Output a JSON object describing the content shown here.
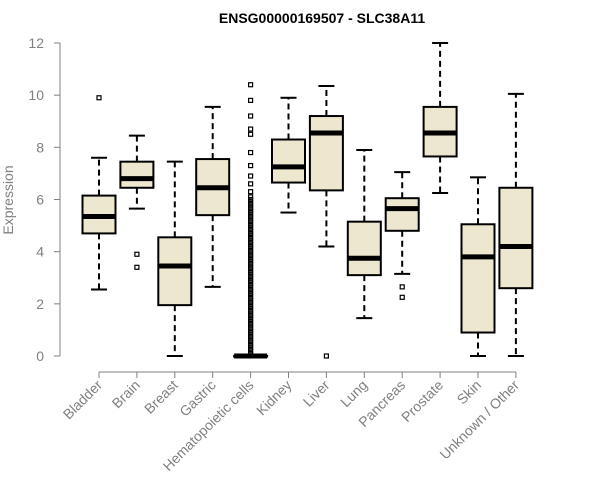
{
  "chart_data": {
    "type": "boxplot",
    "title": "ENSG00000169507 - SLC38A11",
    "xlabel": "",
    "ylabel": "Expression",
    "ylim": [
      0,
      12
    ],
    "yticks": [
      "0",
      "2",
      "4",
      "6",
      "8",
      "10",
      "12"
    ],
    "colors": {
      "box_fill": "#ede7cf",
      "stroke": "#000000",
      "axis": "#808080"
    },
    "categories": [
      "Bladder",
      "Brain",
      "Breast",
      "Gastric",
      "Hematopoietic cells",
      "Kidney",
      "Liver",
      "Lung",
      "Pancreas",
      "Prostate",
      "Skin",
      "Unknown / Other"
    ],
    "boxes": [
      {
        "name": "Bladder",
        "min": 2.55,
        "q1": 4.7,
        "median": 5.35,
        "q3": 6.15,
        "max": 7.6,
        "outliers": [
          9.9
        ]
      },
      {
        "name": "Brain",
        "min": 5.65,
        "q1": 6.45,
        "median": 6.8,
        "q3": 7.45,
        "max": 8.45,
        "outliers": [
          3.9,
          3.4
        ]
      },
      {
        "name": "Breast",
        "min": 0.0,
        "q1": 1.95,
        "median": 3.45,
        "q3": 4.55,
        "max": 7.45,
        "outliers": []
      },
      {
        "name": "Gastric",
        "min": 2.65,
        "q1": 5.4,
        "median": 6.45,
        "q3": 7.55,
        "max": 9.55,
        "outliers": []
      },
      {
        "name": "Hematopoietic cells",
        "min": 0.0,
        "q1": 0.0,
        "median": 0.0,
        "q3": 0.0,
        "max": 0.0,
        "outliers": [
          0.1,
          0.2,
          0.3,
          0.4,
          0.5,
          0.6,
          0.7,
          0.8,
          0.9,
          1.0,
          1.1,
          1.2,
          1.3,
          1.4,
          1.5,
          1.6,
          1.7,
          1.8,
          1.9,
          2.0,
          2.1,
          2.2,
          2.3,
          2.4,
          2.5,
          2.6,
          2.7,
          2.8,
          2.9,
          3.0,
          3.1,
          3.2,
          3.3,
          3.4,
          3.5,
          3.6,
          3.7,
          3.8,
          3.9,
          4.0,
          4.1,
          4.2,
          4.3,
          4.4,
          4.5,
          4.6,
          4.7,
          4.8,
          4.9,
          5.0,
          5.1,
          5.2,
          5.3,
          5.4,
          5.5,
          5.6,
          5.7,
          5.8,
          5.9,
          6.0,
          6.1,
          6.3,
          6.6,
          6.9,
          7.3,
          7.8,
          8.5,
          8.7,
          9.2,
          9.8,
          10.4
        ]
      },
      {
        "name": "Kidney",
        "min": 5.5,
        "q1": 6.65,
        "median": 7.25,
        "q3": 8.3,
        "max": 9.9,
        "outliers": []
      },
      {
        "name": "Liver",
        "min": 4.2,
        "q1": 6.35,
        "median": 8.55,
        "q3": 9.2,
        "max": 10.35,
        "outliers": [
          0.0
        ]
      },
      {
        "name": "Lung",
        "min": 1.45,
        "q1": 3.1,
        "median": 3.75,
        "q3": 5.15,
        "max": 7.9,
        "outliers": []
      },
      {
        "name": "Pancreas",
        "min": 3.15,
        "q1": 4.8,
        "median": 5.65,
        "q3": 6.05,
        "max": 7.05,
        "outliers": [
          2.65,
          2.25
        ]
      },
      {
        "name": "Prostate",
        "min": 6.25,
        "q1": 7.65,
        "median": 8.55,
        "q3": 9.55,
        "max": 12.0,
        "outliers": []
      },
      {
        "name": "Skin",
        "min": 0.0,
        "q1": 0.9,
        "median": 3.8,
        "q3": 5.05,
        "max": 6.85,
        "outliers": []
      },
      {
        "name": "Unknown / Other",
        "min": 0.0,
        "q1": 2.6,
        "median": 4.2,
        "q3": 6.45,
        "max": 10.05,
        "outliers": []
      }
    ]
  }
}
